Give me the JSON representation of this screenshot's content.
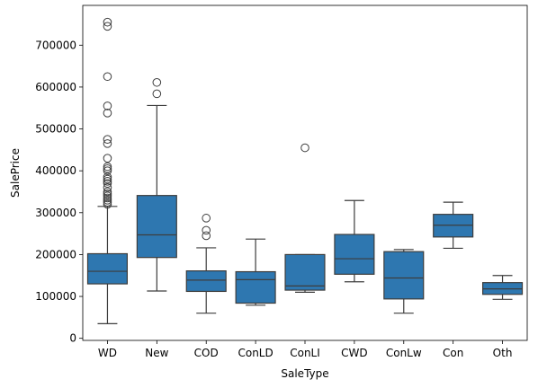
{
  "chart_data": {
    "type": "box",
    "xlabel": "SaleType",
    "ylabel": "SalePrice",
    "ylim": [
      -5000,
      795000
    ],
    "yticks": [
      0,
      100000,
      200000,
      300000,
      400000,
      500000,
      600000,
      700000
    ],
    "color": "#2e77b0",
    "categories": [
      {
        "name": "WD",
        "q1": 130000,
        "median": 160000,
        "q3": 202000,
        "whisker_low": 35000,
        "whisker_high": 315000,
        "outliers": [
          755000,
          745000,
          625000,
          555000,
          538000,
          475000,
          465000,
          430000,
          410000,
          405000,
          400000,
          385000,
          380000,
          375000,
          370000,
          360000,
          350000,
          345000,
          340000,
          335000,
          330000,
          325000,
          320000
        ]
      },
      {
        "name": "New",
        "q1": 193000,
        "median": 247000,
        "q3": 341000,
        "whisker_low": 113000,
        "whisker_high": 556000,
        "outliers": [
          611000,
          584000
        ]
      },
      {
        "name": "COD",
        "q1": 112000,
        "median": 139000,
        "q3": 161000,
        "whisker_low": 60000,
        "whisker_high": 216000,
        "outliers": [
          287000,
          258000,
          245000
        ]
      },
      {
        "name": "ConLD",
        "q1": 84000,
        "median": 140000,
        "q3": 159000,
        "whisker_low": 79000,
        "whisker_high": 237000,
        "outliers": []
      },
      {
        "name": "ConLI",
        "q1": 115000,
        "median": 125000,
        "q3": 200000,
        "whisker_low": 110000,
        "whisker_high": 200000,
        "outliers": [
          455000
        ]
      },
      {
        "name": "CWD",
        "q1": 153000,
        "median": 190000,
        "q3": 248000,
        "whisker_low": 135000,
        "whisker_high": 329000,
        "outliers": []
      },
      {
        "name": "ConLw",
        "q1": 94000,
        "median": 144000,
        "q3": 207000,
        "whisker_low": 60000,
        "whisker_high": 212000,
        "outliers": []
      },
      {
        "name": "Con",
        "q1": 242000,
        "median": 270000,
        "q3": 296000,
        "whisker_low": 215000,
        "whisker_high": 325000,
        "outliers": []
      },
      {
        "name": "Oth",
        "q1": 105000,
        "median": 118000,
        "q3": 133000,
        "whisker_low": 93000,
        "whisker_high": 150000,
        "outliers": []
      }
    ]
  }
}
